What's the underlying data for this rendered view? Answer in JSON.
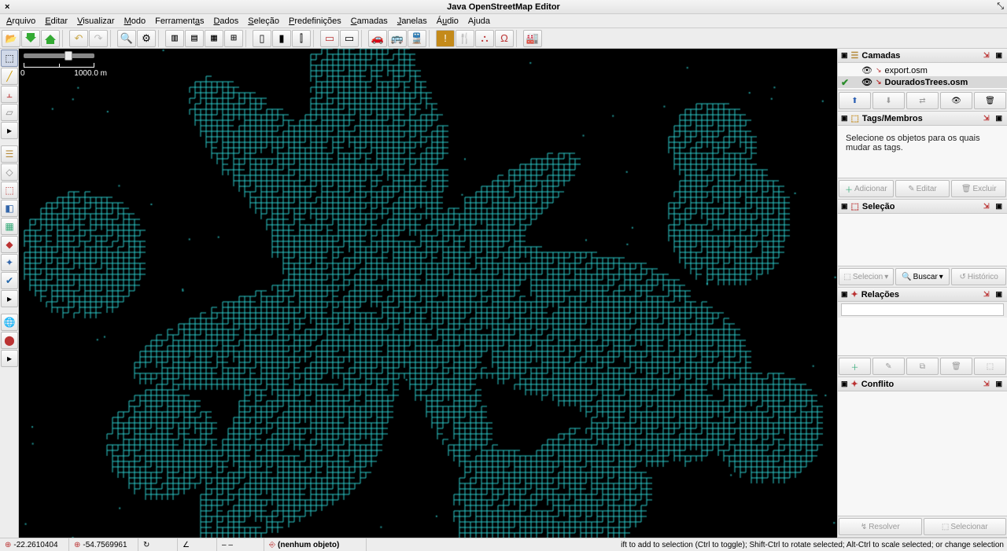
{
  "window": {
    "title": "Java OpenStreetMap Editor"
  },
  "menu": {
    "items": [
      "Arquivo",
      "Editar",
      "Visualizar",
      "Modo",
      "Ferramentas",
      "Dados",
      "Seleção",
      "Predefinições",
      "Camadas",
      "Janelas",
      "Áudio",
      "Ajuda"
    ],
    "mnemonics": [
      0,
      0,
      0,
      0,
      9,
      0,
      0,
      0,
      0,
      0,
      1,
      1
    ]
  },
  "toolbar": {
    "groups": [
      [
        "open",
        "download",
        "upload"
      ],
      [
        "undo",
        "redo"
      ],
      [
        "search",
        "preferences"
      ],
      [
        "grid1",
        "grid2",
        "grid3",
        "grid4"
      ],
      [
        "align1",
        "align2",
        "align3"
      ],
      [
        "preset1",
        "preset2"
      ],
      [
        "car",
        "bus",
        "train"
      ],
      [
        "warn",
        "food",
        "wall",
        "arch"
      ],
      [
        "industry"
      ]
    ]
  },
  "lefttools": [
    "select",
    "draw",
    "extrude",
    "building",
    "expand1",
    "layers-stack",
    "lasso",
    "sel2",
    "paint",
    "map-bg",
    "tasks",
    "marker2",
    "validate",
    "expand2",
    "globe",
    "pin"
  ],
  "map": {
    "background": "#000000",
    "street_color": "#2fd7d7",
    "scale": {
      "zero": "0",
      "distance": "1000.0 m"
    }
  },
  "panels": {
    "layers": {
      "title": "Camadas",
      "items": [
        {
          "name": "export.osm",
          "visible": true,
          "active": false
        },
        {
          "name": "DouradosTrees.osm",
          "visible": true,
          "active": true
        }
      ],
      "buttons": [
        "up",
        "down",
        "toggle",
        "show",
        "delete"
      ]
    },
    "tags": {
      "title": "Tags/Membros",
      "message": "Selecione os objetos para os quais mudar as tags.",
      "buttons": {
        "add": "Adicionar",
        "edit": "Editar",
        "delete": "Excluir"
      }
    },
    "selection": {
      "title": "Seleção",
      "buttons": {
        "select": "Selecion",
        "search": "Buscar",
        "history": "Histórico"
      }
    },
    "relations": {
      "title": "Relações",
      "search_placeholder": ""
    },
    "conflict": {
      "title": "Conflito",
      "buttons": {
        "resolve": "Resolver",
        "select": "Selecionar"
      }
    }
  },
  "statusbar": {
    "lat": "-22.2610404",
    "lon": "-54.7569961",
    "heading_icon": "↻",
    "angle_icon": "∠",
    "dash": "– –",
    "object": "(nenhum objeto)",
    "hint": "ift to add to selection (Ctrl to toggle); Shift-Ctrl to rotate selected; Alt-Ctrl to scale selected; or change selection"
  }
}
